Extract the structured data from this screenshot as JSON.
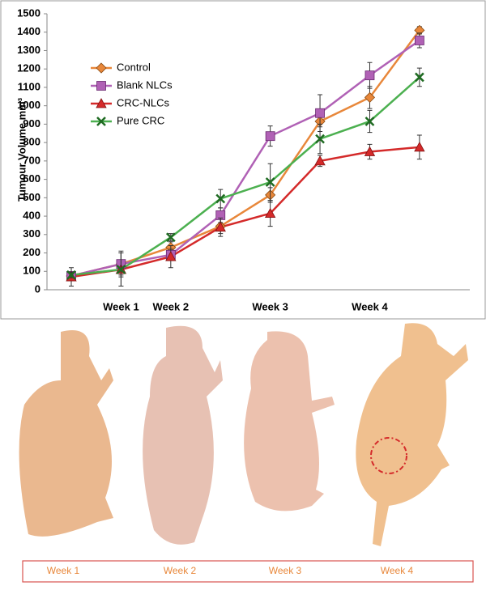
{
  "chart_data": {
    "type": "line",
    "y_label": "Tumour Volume mm³",
    "categories": [
      null,
      "Week 1",
      "Week 2",
      null,
      "Week 3",
      null,
      "Week 4",
      null
    ],
    "series": [
      {
        "name": "Control",
        "color": "#e8873a",
        "marker": "diamond",
        "values": [
          75,
          140,
          230,
          345,
          515,
          915,
          1045,
          1410
        ],
        "errors": [
          20,
          60,
          30,
          40,
          40,
          30,
          60,
          20
        ]
      },
      {
        "name": "Blank NLCs",
        "color": "#b061b5",
        "marker": "square",
        "values": [
          75,
          140,
          190,
          405,
          835,
          960,
          1165,
          1355
        ],
        "errors": [
          10,
          70,
          30,
          40,
          55,
          100,
          70,
          40
        ]
      },
      {
        "name": "CRC-NLCs",
        "color": "#d42a2a",
        "marker": "triangle",
        "values": [
          70,
          110,
          180,
          340,
          415,
          700,
          750,
          775
        ],
        "errors": [
          50,
          90,
          60,
          50,
          70,
          30,
          40,
          65
        ]
      },
      {
        "name": "Pure CRC",
        "color": "#4cb050",
        "marker": "x",
        "values": [
          80,
          110,
          285,
          495,
          585,
          820,
          915,
          1155
        ],
        "errors": [
          15,
          90,
          20,
          50,
          100,
          80,
          60,
          50
        ]
      }
    ],
    "ylim": [
      0,
      1500
    ],
    "yticks": [
      0,
      100,
      200,
      300,
      400,
      500,
      600,
      700,
      800,
      900,
      1000,
      1100,
      1200,
      1300,
      1400,
      1500
    ],
    "legend": "upper left"
  },
  "photo_labels": [
    "Week 1",
    "Week 2",
    "Week 3",
    "Week 4"
  ]
}
